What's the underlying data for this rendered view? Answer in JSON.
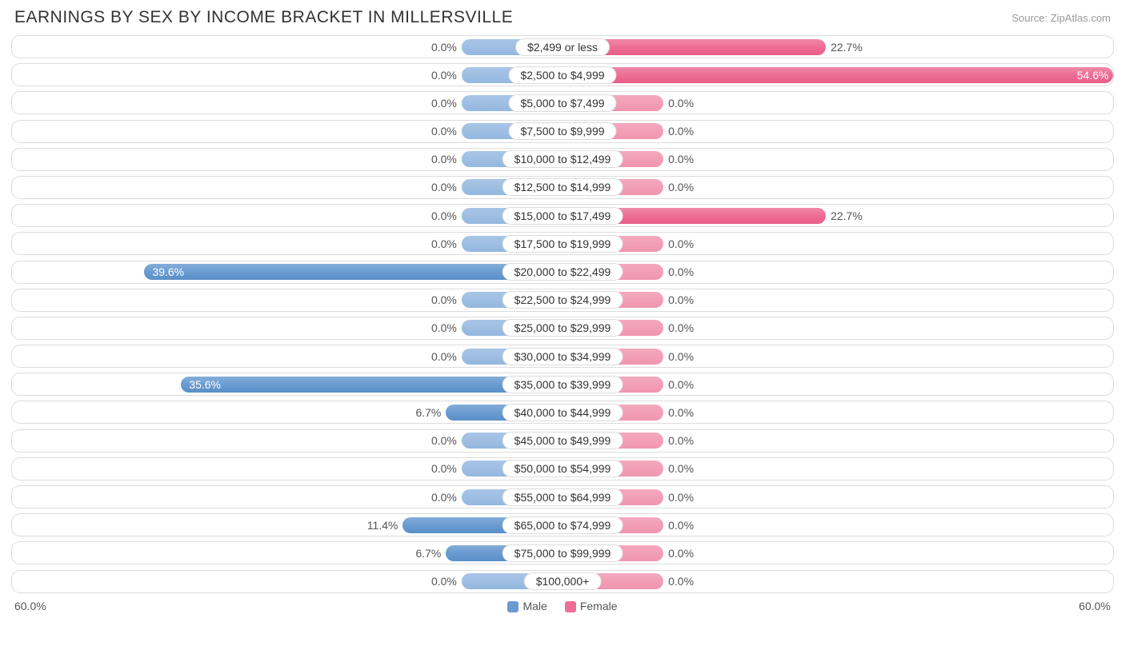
{
  "title": "EARNINGS BY SEX BY INCOME BRACKET IN MILLERSVILLE",
  "source": "Source: ZipAtlas.com",
  "axis_max_pct": 60.0,
  "axis_label_left": "60.0%",
  "axis_label_right": "60.0%",
  "base_bar_pct": 5.0,
  "colors": {
    "male_bar": "#6a9bd1",
    "female_bar": "#ed6d95",
    "male_base": "#9dbce0",
    "female_base": "#f2a0b9",
    "row_border": "#dcdcdc",
    "background": "#ffffff",
    "text": "#333333",
    "muted_text": "#999999"
  },
  "legend": {
    "male": "Male",
    "female": "Female"
  },
  "rows": [
    {
      "label": "$2,499 or less",
      "male": 0.0,
      "female": 22.7
    },
    {
      "label": "$2,500 to $4,999",
      "male": 0.0,
      "female": 54.6
    },
    {
      "label": "$5,000 to $7,499",
      "male": 0.0,
      "female": 0.0
    },
    {
      "label": "$7,500 to $9,999",
      "male": 0.0,
      "female": 0.0
    },
    {
      "label": "$10,000 to $12,499",
      "male": 0.0,
      "female": 0.0
    },
    {
      "label": "$12,500 to $14,999",
      "male": 0.0,
      "female": 0.0
    },
    {
      "label": "$15,000 to $17,499",
      "male": 0.0,
      "female": 22.7
    },
    {
      "label": "$17,500 to $19,999",
      "male": 0.0,
      "female": 0.0
    },
    {
      "label": "$20,000 to $22,499",
      "male": 39.6,
      "female": 0.0
    },
    {
      "label": "$22,500 to $24,999",
      "male": 0.0,
      "female": 0.0
    },
    {
      "label": "$25,000 to $29,999",
      "male": 0.0,
      "female": 0.0
    },
    {
      "label": "$30,000 to $34,999",
      "male": 0.0,
      "female": 0.0
    },
    {
      "label": "$35,000 to $39,999",
      "male": 35.6,
      "female": 0.0
    },
    {
      "label": "$40,000 to $44,999",
      "male": 6.7,
      "female": 0.0
    },
    {
      "label": "$45,000 to $49,999",
      "male": 0.0,
      "female": 0.0
    },
    {
      "label": "$50,000 to $54,999",
      "male": 0.0,
      "female": 0.0
    },
    {
      "label": "$55,000 to $64,999",
      "male": 0.0,
      "female": 0.0
    },
    {
      "label": "$65,000 to $74,999",
      "male": 11.4,
      "female": 0.0
    },
    {
      "label": "$75,000 to $99,999",
      "male": 6.7,
      "female": 0.0
    },
    {
      "label": "$100,000+",
      "male": 0.0,
      "female": 0.0
    }
  ]
}
